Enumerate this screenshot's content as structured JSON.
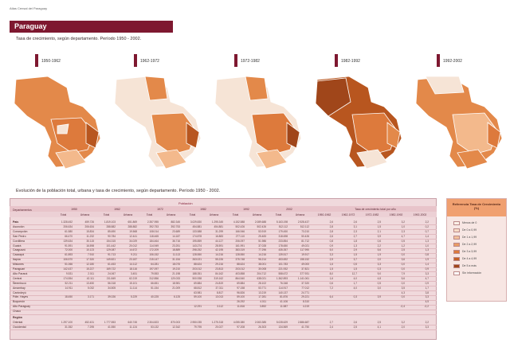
{
  "header": {
    "atlas_label": "Atlas Censal del Paraguay"
  },
  "country": "Paraguay",
  "maps_section_title": "Tasa de crecimiento, según departamento. Período 1950 - 2002.",
  "map_periods": [
    "1950-1962",
    "1962-1972",
    "1972-1982",
    "1982-1992",
    "1992-2002"
  ],
  "table_section_title": "Evolución de la población total, urbana y tasa de crecimiento, según departamento. Período 1950 - 2002.",
  "table": {
    "title": "Población",
    "col_departamento": "Departamentos",
    "years": [
      "1950",
      "1962",
      "1972",
      "1982",
      "1992",
      "2002"
    ],
    "subcols": [
      "Total",
      "Urbana"
    ],
    "rate_header": "Tasa de crecimiento total por año",
    "rate_cols": [
      "1950-1962",
      "1962-1972",
      "1972-1982",
      "1982-1992",
      "1992-2002"
    ],
    "rows": [
      {
        "label": "País",
        "values": [
          "1.328.452",
          "459.726",
          "1.819.103",
          "651.869",
          "2.357.955",
          "882.345",
          "3.029.830",
          "1.295.345",
          "4.152.588",
          "2.089.688",
          "5.163.198",
          "2.928.437",
          "2,6",
          "2,6",
          "2,5",
          "3,2",
          "2,2"
        ]
      },
      {
        "label": "Asunción",
        "values": [
          "206.634",
          "206.634",
          "288.882",
          "288.882",
          "392.753",
          "392.753",
          "454.881",
          "454.881",
          "502.426",
          "502.426",
          "512.112",
          "512.112",
          "2,8",
          "3,1",
          "1,5",
          "1,0",
          "0,2"
        ]
      },
      {
        "label": "Concepción",
        "values": [
          "61.580",
          "15.834",
          "85.690",
          "19.568",
          "108.014",
          "23.689",
          "133.588",
          "31.299",
          "166.946",
          "53.919",
          "179.450",
          "73.210",
          "2,8",
          "2,3",
          "2,1",
          "2,3",
          "0,7"
        ]
      },
      {
        "label": "San Pedro",
        "values": [
          "66.470",
          "11.232",
          "90.784",
          "12.441",
          "118.465",
          "14.187",
          "174.878",
          "16.883",
          "277.110",
          "25.483",
          "318.698",
          "50.426",
          "2,6",
          "2,7",
          "3,9",
          "4,7",
          "1,4"
        ]
      },
      {
        "label": "Cordillera",
        "values": [
          "139.634",
          "30.115",
          "154.315",
          "34.029",
          "184.464",
          "36.716",
          "195.859",
          "44.127",
          "206.097",
          "51.986",
          "233.854",
          "81.712",
          "0,8",
          "1,8",
          "0,6",
          "0,5",
          "1,3"
        ]
      },
      {
        "label": "Guairá",
        "values": [
          "91.591",
          "16.598",
          "101.442",
          "20.012",
          "114.949",
          "23.251",
          "143.274",
          "28.591",
          "161.991",
          "37.028",
          "178.650",
          "49.021",
          "0,9",
          "1,3",
          "2,2",
          "1,2",
          "1,0"
        ]
      },
      {
        "label": "Caaguazú",
        "values": [
          "72.000",
          "10.123",
          "129.087",
          "14.672",
          "172.209",
          "18.889",
          "298.252",
          "42.195",
          "383.319",
          "77.296",
          "435.357",
          "117.990",
          "5,0",
          "2,9",
          "5,6",
          "2,5",
          "1,3"
        ]
      },
      {
        "label": "Caazapá",
        "values": [
          "61.893",
          "7.910",
          "91.713",
          "9.211",
          "106.152",
          "11.113",
          "128.550",
          "14.216",
          "128.550",
          "14.216",
          "139.517",
          "19.917",
          "3,3",
          "1,5",
          "1,9",
          "0,0",
          "0,8"
        ]
      },
      {
        "label": "Itapúa",
        "values": [
          "106.570",
          "17.320",
          "149.821",
          "23.187",
          "215.147",
          "31.154",
          "263.021",
          "55.226",
          "375.748",
          "96.214",
          "453.692",
          "158.152",
          "2,9",
          "3,7",
          "2,0",
          "3,6",
          "1,9"
        ]
      },
      {
        "label": "Misiones",
        "values": [
          "51.066",
          "12.180",
          "61.453",
          "14.112",
          "64.281",
          "18.076",
          "88.624",
          "29.216",
          "88.624",
          "38.001",
          "101.783",
          "49.000",
          "1,6",
          "0,5",
          "3,3",
          "0,0",
          "1,4"
        ]
      },
      {
        "label": "Paraguarí",
        "values": [
          "142.437",
          "15.227",
          "169.722",
          "18.116",
          "197.097",
          "19.210",
          "203.012",
          "23.813",
          "203.012",
          "30.008",
          "221.932",
          "37.821",
          "1,5",
          "1,5",
          "0,3",
          "0,0",
          "0,9"
        ]
      },
      {
        "label": "Alto Paraná",
        "values": [
          "9.531",
          "2.011",
          "24.067",
          "3.451",
          "79.553",
          "21.198",
          "188.351",
          "84.162",
          "403.858",
          "204.712",
          "558.672",
          "377.931",
          "8,0",
          "12,7",
          "9,0",
          "7,9",
          "3,3"
        ]
      },
      {
        "label": "Central",
        "values": [
          "174.554",
          "42.111",
          "211.849",
          "62.219",
          "312.856",
          "120.033",
          "500.938",
          "319.162",
          "864.540",
          "638.021",
          "1.362.893",
          "1.141.061",
          "1,6",
          "4,0",
          "4,8",
          "5,6",
          "4,7"
        ]
      },
      {
        "label": "Ñeembucú",
        "values": [
          "52.211",
          "13.450",
          "56.318",
          "15.101",
          "66.651",
          "18.981",
          "69.884",
          "24.819",
          "69.884",
          "28.102",
          "76.348",
          "37.320",
          "0,6",
          "1,7",
          "0,5",
          "0,0",
          "0,9"
        ]
      },
      {
        "label": "Amambay",
        "values": [
          "14.911",
          "5.032",
          "34.505",
          "11.114",
          "51.154",
          "21.009",
          "68.812",
          "37.311",
          "97.158",
          "53.771",
          "114.917",
          "77.012",
          "7,2",
          "4,0",
          "3,0",
          "3,5",
          "1,7"
        ]
      },
      {
        "label": "Canindeyú",
        "values": [
          "",
          "",
          "",
          "",
          "",
          "",
          "63.981",
          "8.817",
          "96.826",
          "13.219",
          "140.137",
          "24.771",
          "",
          "",
          "",
          "4,3",
          "3,8"
        ]
      },
      {
        "label": "Pdte. Hayes",
        "values": [
          "18.450",
          "3.171",
          "39.026",
          "5.229",
          "40.225",
          "6.125",
          "59.100",
          "13.013",
          "59.100",
          "17.281",
          "81.876",
          "29.221",
          "6,4",
          "0,3",
          "3,9",
          "0,0",
          "3,3"
        ]
      },
      {
        "label": "Boquerón",
        "values": [
          "",
          "",
          "",
          "",
          "",
          "",
          "",
          "",
          "26.292",
          "4.011",
          "41.106",
          "8.310",
          "",
          "",
          "",
          "",
          "4,5"
        ]
      },
      {
        "label": "Alto Paraguay",
        "values": [
          "",
          "",
          "",
          "",
          "",
          "",
          "12.291",
          "3.112",
          "11.816",
          "3.892",
          "11.587",
          "4.219",
          "",
          "",
          "",
          "-0,4",
          "-0,2"
        ]
      },
      {
        "label": "Chaco",
        "values": [
          "",
          "",
          "",
          "",
          "",
          "",
          "",
          "",
          "",
          "",
          "",
          "",
          "",
          "",
          "",
          "",
          ""
        ]
      }
    ],
    "area_label": "Región",
    "area_rows": [
      {
        "label": "Oriental",
        "values": [
          "1.297.100",
          "452.431",
          "1.777.553",
          "640.745",
          "2.304.823",
          "870.003",
          "2.950.035",
          "1.275.318",
          "4.055.380",
          "2.063.385",
          "5.028.629",
          "2.886.687",
          "2,7",
          "2,6",
          "2,5",
          "3,2",
          "2,2"
        ]
      },
      {
        "label": "Occidental",
        "values": [
          "31.352",
          "7.295",
          "41.550",
          "11.124",
          "53.132",
          "12.342",
          "79.795",
          "20.027",
          "97.208",
          "26.303",
          "134.569",
          "41.750",
          "2,4",
          "2,5",
          "4,1",
          "2,0",
          "3,3"
        ]
      }
    ]
  },
  "legend": {
    "title": "Referencia Tasa de Crecimiento (%)",
    "items": [
      {
        "label": "Menos de 0",
        "color": "#fbf0e8"
      },
      {
        "label": "De 0 a 0,99",
        "color": "#f7dcc6"
      },
      {
        "label": "De 1 a 1,99",
        "color": "#f2c09a"
      },
      {
        "label": "De 2 a 2,99",
        "color": "#ea9c64"
      },
      {
        "label": "De 3 a 3,99",
        "color": "#dd7a3c"
      },
      {
        "label": "De 4 a 4,99",
        "color": "#c45f24"
      },
      {
        "label": "De 5 a más",
        "color": "#a0461a"
      },
      {
        "label": "Sin información",
        "color": "#ffffff"
      }
    ]
  },
  "colors": {
    "brand": "#7e1830",
    "orange_dark": "#b8561f",
    "orange_mid": "#e3894a",
    "orange_light": "#f3b98c",
    "pale": "#f6e4d6"
  }
}
